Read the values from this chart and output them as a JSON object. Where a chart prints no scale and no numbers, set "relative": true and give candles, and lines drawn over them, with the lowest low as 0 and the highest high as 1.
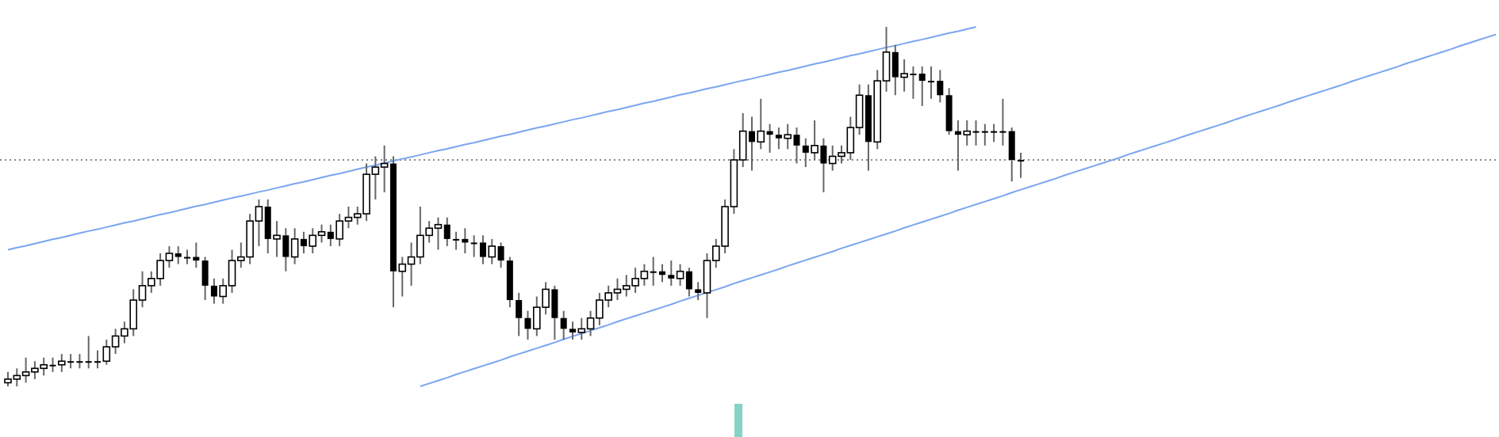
{
  "chart_data": {
    "type": "candlestick",
    "relative": true,
    "color": "#000000",
    "categories": [
      null,
      null,
      null,
      null,
      null,
      null,
      null,
      null,
      null,
      null,
      null,
      null,
      null,
      null,
      null,
      null,
      null,
      null,
      null,
      null,
      null,
      null,
      null,
      null,
      null,
      null,
      null,
      null,
      null,
      null,
      null,
      null,
      null,
      null,
      null,
      null,
      null,
      null,
      null,
      null,
      null,
      null,
      null,
      null,
      null,
      null,
      null,
      null,
      null,
      null,
      null,
      null,
      null,
      null,
      null,
      null,
      null,
      null,
      null,
      null,
      null,
      null,
      null,
      null,
      null,
      null,
      null,
      null,
      null,
      null,
      null,
      null,
      null,
      null,
      null,
      null,
      null,
      null,
      null,
      null,
      null,
      null,
      null,
      null,
      null,
      null,
      null,
      null,
      null,
      null,
      null,
      null,
      null,
      null,
      null,
      null,
      null,
      null,
      null,
      null,
      null,
      null,
      null,
      null,
      null,
      null,
      null,
      null,
      null,
      null,
      null,
      null,
      null,
      null,
      null,
      null,
      null,
      null,
      null,
      null,
      null,
      null,
      null,
      null,
      null,
      null,
      null,
      null,
      null,
      null,
      null,
      null,
      null,
      null,
      null,
      null,
      null,
      null,
      null,
      null,
      null,
      null,
      null,
      null,
      null,
      null,
      null,
      null,
      null,
      null,
      null,
      null,
      null,
      null,
      null,
      null,
      null,
      null,
      null,
      null,
      null,
      null,
      null,
      null,
      null,
      null,
      null
    ],
    "ohlc": [
      [
        0.01,
        0.04,
        0,
        0.02
      ],
      [
        0.02,
        0.05,
        0.0,
        0.03
      ],
      [
        0.03,
        0.08,
        0.01,
        0.04
      ],
      [
        0.04,
        0.07,
        0.02,
        0.05
      ],
      [
        0.05,
        0.08,
        0.03,
        0.06
      ],
      [
        0.06,
        0.08,
        0.04,
        0.06
      ],
      [
        0.06,
        0.09,
        0.04,
        0.07
      ],
      [
        0.07,
        0.09,
        0.05,
        0.07
      ],
      [
        0.07,
        0.09,
        0.05,
        0.07
      ],
      [
        0.07,
        0.14,
        0.05,
        0.07
      ],
      [
        0.07,
        0.1,
        0.05,
        0.07
      ],
      [
        0.07,
        0.13,
        0.06,
        0.11
      ],
      [
        0.11,
        0.16,
        0.09,
        0.14
      ],
      [
        0.14,
        0.18,
        0.12,
        0.16
      ],
      [
        0.16,
        0.27,
        0.14,
        0.24
      ],
      [
        0.24,
        0.32,
        0.22,
        0.28
      ],
      [
        0.28,
        0.32,
        0.26,
        0.3
      ],
      [
        0.3,
        0.37,
        0.28,
        0.35
      ],
      [
        0.35,
        0.39,
        0.33,
        0.37
      ],
      [
        0.37,
        0.39,
        0.34,
        0.36
      ],
      [
        0.36,
        0.38,
        0.34,
        0.36
      ],
      [
        0.36,
        0.4,
        0.33,
        0.35
      ],
      [
        0.35,
        0.36,
        0.24,
        0.28
      ],
      [
        0.28,
        0.3,
        0.23,
        0.25
      ],
      [
        0.25,
        0.3,
        0.23,
        0.28
      ],
      [
        0.28,
        0.38,
        0.26,
        0.35
      ],
      [
        0.35,
        0.4,
        0.33,
        0.36
      ],
      [
        0.36,
        0.48,
        0.34,
        0.46
      ],
      [
        0.46,
        0.52,
        0.39,
        0.5
      ],
      [
        0.5,
        0.52,
        0.37,
        0.41
      ],
      [
        0.41,
        0.46,
        0.36,
        0.42
      ],
      [
        0.42,
        0.44,
        0.32,
        0.36
      ],
      [
        0.36,
        0.44,
        0.34,
        0.41
      ],
      [
        0.41,
        0.43,
        0.37,
        0.39
      ],
      [
        0.39,
        0.44,
        0.37,
        0.42
      ],
      [
        0.42,
        0.45,
        0.4,
        0.43
      ],
      [
        0.43,
        0.45,
        0.39,
        0.41
      ],
      [
        0.41,
        0.48,
        0.39,
        0.46
      ],
      [
        0.46,
        0.5,
        0.44,
        0.47
      ],
      [
        0.47,
        0.5,
        0.45,
        0.48
      ],
      [
        0.48,
        0.62,
        0.46,
        0.59
      ],
      [
        0.59,
        0.64,
        0.52,
        0.61
      ],
      [
        0.61,
        0.67,
        0.54,
        0.62
      ],
      [
        0.62,
        0.64,
        0.22,
        0.32
      ],
      [
        0.32,
        0.36,
        0.25,
        0.34
      ],
      [
        0.34,
        0.4,
        0.28,
        0.36
      ],
      [
        0.36,
        0.5,
        0.34,
        0.42
      ],
      [
        0.42,
        0.46,
        0.4,
        0.44
      ],
      [
        0.44,
        0.47,
        0.38,
        0.45
      ],
      [
        0.45,
        0.47,
        0.39,
        0.41
      ],
      [
        0.41,
        0.43,
        0.38,
        0.41
      ],
      [
        0.41,
        0.44,
        0.37,
        0.4
      ],
      [
        0.4,
        0.42,
        0.36,
        0.4
      ],
      [
        0.4,
        0.42,
        0.34,
        0.36
      ],
      [
        0.36,
        0.41,
        0.34,
        0.39
      ],
      [
        0.39,
        0.4,
        0.33,
        0.35
      ],
      [
        0.35,
        0.36,
        0.22,
        0.24
      ],
      [
        0.24,
        0.26,
        0.14,
        0.19
      ],
      [
        0.19,
        0.21,
        0.13,
        0.16
      ],
      [
        0.16,
        0.25,
        0.14,
        0.22
      ],
      [
        0.22,
        0.29,
        0.2,
        0.27
      ],
      [
        0.27,
        0.28,
        0.13,
        0.19
      ],
      [
        0.19,
        0.21,
        0.13,
        0.16
      ],
      [
        0.16,
        0.18,
        0.13,
        0.15
      ],
      [
        0.15,
        0.19,
        0.13,
        0.16
      ],
      [
        0.16,
        0.21,
        0.14,
        0.19
      ],
      [
        0.19,
        0.26,
        0.17,
        0.24
      ],
      [
        0.24,
        0.28,
        0.22,
        0.26
      ],
      [
        0.26,
        0.3,
        0.24,
        0.27
      ],
      [
        0.27,
        0.31,
        0.25,
        0.28
      ],
      [
        0.28,
        0.33,
        0.26,
        0.3
      ],
      [
        0.3,
        0.34,
        0.28,
        0.32
      ],
      [
        0.32,
        0.36,
        0.28,
        0.32
      ],
      [
        0.32,
        0.34,
        0.29,
        0.31
      ],
      [
        0.31,
        0.35,
        0.28,
        0.3
      ],
      [
        0.3,
        0.34,
        0.28,
        0.32
      ],
      [
        0.32,
        0.33,
        0.25,
        0.27
      ],
      [
        0.27,
        0.29,
        0.24,
        0.26
      ],
      [
        0.26,
        0.37,
        0.19,
        0.35
      ],
      [
        0.35,
        0.41,
        0.33,
        0.39
      ],
      [
        0.39,
        0.52,
        0.37,
        0.5
      ],
      [
        0.5,
        0.66,
        0.48,
        0.63
      ],
      [
        0.63,
        0.76,
        0.61,
        0.71
      ],
      [
        0.71,
        0.75,
        0.6,
        0.68
      ],
      [
        0.68,
        0.8,
        0.66,
        0.71
      ],
      [
        0.71,
        0.73,
        0.65,
        0.7
      ],
      [
        0.7,
        0.72,
        0.66,
        0.69
      ],
      [
        0.69,
        0.73,
        0.66,
        0.7
      ],
      [
        0.7,
        0.72,
        0.62,
        0.67
      ],
      [
        0.67,
        0.69,
        0.61,
        0.65
      ],
      [
        0.65,
        0.74,
        0.63,
        0.67
      ],
      [
        0.67,
        0.69,
        0.54,
        0.62
      ],
      [
        0.62,
        0.67,
        0.6,
        0.64
      ],
      [
        0.64,
        0.67,
        0.62,
        0.65
      ],
      [
        0.65,
        0.75,
        0.63,
        0.72
      ],
      [
        0.72,
        0.84,
        0.7,
        0.81
      ],
      [
        0.81,
        0.84,
        0.6,
        0.68
      ],
      [
        0.68,
        0.88,
        0.66,
        0.85
      ],
      [
        0.85,
        1,
        0.82,
        0.93
      ],
      [
        0.93,
        0.95,
        0.81,
        0.86
      ],
      [
        0.86,
        0.91,
        0.82,
        0.87
      ],
      [
        0.87,
        0.89,
        0.8,
        0.87
      ],
      [
        0.87,
        0.89,
        0.78,
        0.85
      ],
      [
        0.85,
        0.89,
        0.8,
        0.85
      ],
      [
        0.85,
        0.88,
        0.79,
        0.81
      ],
      [
        0.81,
        0.83,
        0.7,
        0.71
      ],
      [
        0.71,
        0.74,
        0.6,
        0.7
      ],
      [
        0.7,
        0.74,
        0.67,
        0.71
      ],
      [
        0.71,
        0.74,
        0.67,
        0.71
      ],
      [
        0.71,
        0.73,
        0.67,
        0.71
      ],
      [
        0.71,
        0.73,
        0.68,
        0.71
      ],
      [
        0.71,
        0.8,
        0.67,
        0.71
      ],
      [
        0.71,
        0.72,
        0.57,
        0.63
      ],
      [
        0.63,
        0.65,
        0.58,
        0.63
      ],
      null,
      null,
      null,
      null,
      null,
      null,
      null,
      null,
      null,
      null,
      null,
      null,
      null,
      null,
      null,
      null,
      null,
      null,
      null,
      null,
      null,
      null,
      null,
      null,
      null,
      null,
      null,
      null,
      null,
      null,
      null,
      null,
      null,
      null,
      null,
      null,
      null,
      null,
      null,
      null,
      null,
      null,
      null,
      null,
      null,
      null,
      null,
      null,
      null,
      null,
      null,
      null,
      null
    ],
    "series": [
      {
        "type": "line",
        "color": "#7aa5ef",
        "values": [
          0.38,
          0.386,
          0.391,
          0.397,
          0.403,
          0.409,
          0.414,
          0.42,
          0.426,
          0.432,
          0.437,
          0.443,
          0.449,
          0.455,
          0.46,
          0.466,
          0.472,
          0.478,
          0.483,
          0.489,
          0.495,
          0.501,
          0.506,
          0.512,
          0.518,
          0.524,
          0.529,
          0.535,
          0.541,
          0.546,
          0.552,
          0.558,
          0.564,
          0.569,
          0.575,
          0.581,
          0.587,
          0.592,
          0.598,
          0.604,
          0.61,
          0.615,
          0.621,
          0.627,
          0.633,
          0.638,
          0.644,
          0.65,
          0.656,
          0.661,
          0.667,
          0.673,
          0.678,
          0.684,
          0.69,
          0.696,
          0.701,
          0.707,
          0.713,
          0.719,
          0.724,
          0.73,
          0.736,
          0.742,
          0.747,
          0.753,
          0.759,
          0.765,
          0.77,
          0.776,
          0.782,
          0.788,
          0.793,
          0.799,
          0.805,
          0.811,
          0.816,
          0.822,
          0.828,
          0.833,
          0.839,
          0.845,
          0.851,
          0.856,
          0.862,
          0.868,
          0.874,
          0.879,
          0.885,
          0.891,
          0.897,
          0.902,
          0.908,
          0.914,
          0.92,
          0.925,
          0.931,
          0.937,
          0.943,
          0.948,
          0.954,
          0.96,
          0.965,
          0.971,
          0.977,
          0.983,
          0.988,
          0.994,
          1.0,
          null,
          null,
          null,
          null,
          null,
          null,
          null,
          null,
          null,
          null,
          null,
          null,
          null,
          null,
          null,
          null,
          null,
          null,
          null,
          null,
          null,
          null,
          null,
          null,
          null,
          null,
          null,
          null,
          null,
          null,
          null,
          null,
          null,
          null,
          null,
          null,
          null,
          null,
          null,
          null,
          null,
          null,
          null,
          null,
          null,
          null,
          null,
          null,
          null,
          null,
          null,
          null,
          null,
          null,
          null,
          null,
          null,
          null
        ]
      },
      {
        "type": "line",
        "color": "#7aa5ef",
        "values": [
          null,
          null,
          null,
          null,
          null,
          null,
          null,
          null,
          null,
          null,
          null,
          null,
          null,
          null,
          null,
          null,
          null,
          null,
          null,
          null,
          null,
          null,
          null,
          null,
          null,
          null,
          null,
          null,
          null,
          null,
          null,
          null,
          null,
          null,
          null,
          null,
          null,
          null,
          null,
          null,
          null,
          null,
          null,
          null,
          null,
          null,
          0,
          0.008,
          0.016,
          0.024,
          0.033,
          0.041,
          0.049,
          0.057,
          0.065,
          0.073,
          0.082,
          0.09,
          0.098,
          0.106,
          0.114,
          0.122,
          0.131,
          0.139,
          0.147,
          0.155,
          0.163,
          0.171,
          0.18,
          0.188,
          0.196,
          0.204,
          0.212,
          0.22,
          0.228,
          0.237,
          0.245,
          0.253,
          0.261,
          0.269,
          0.277,
          0.286,
          0.294,
          0.302,
          0.31,
          0.318,
          0.326,
          0.335,
          0.343,
          0.351,
          0.359,
          0.367,
          0.375,
          0.384,
          0.392,
          0.4,
          0.408,
          0.416,
          0.424,
          0.432,
          0.441,
          0.449,
          0.457,
          0.465,
          0.473,
          0.481,
          0.49,
          0.498,
          0.506,
          0.514,
          0.522,
          0.53,
          0.539,
          0.547,
          0.555,
          0.563,
          0.571,
          0.579,
          0.588,
          0.596,
          0.604,
          0.612,
          0.62,
          0.628,
          0.636,
          0.645,
          0.653,
          0.661,
          0.669,
          0.677,
          0.685,
          0.694,
          0.702,
          0.71,
          0.718,
          0.726,
          0.734,
          0.743,
          0.751,
          0.759,
          0.767,
          0.775,
          0.783,
          0.792,
          0.8,
          0.808,
          0.816,
          0.824,
          0.832,
          0.84,
          0.849,
          0.857,
          0.865,
          0.873,
          0.881,
          0.889,
          0.898,
          0.906,
          0.914,
          0.922,
          0.93,
          0.938,
          0.947,
          0.955,
          0.963,
          0.971,
          0.979
        ]
      }
    ],
    "ref_lines": [
      {
        "axis": "y",
        "value": 0.63,
        "color": "#888888",
        "line_style": "dotted"
      }
    ]
  }
}
